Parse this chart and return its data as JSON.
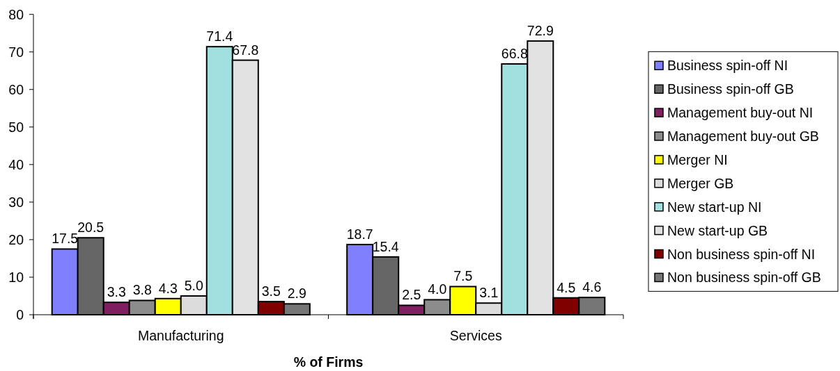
{
  "chart_data": {
    "type": "bar",
    "xlabel": "% of Firms",
    "categories": [
      "Manufacturing",
      "Services"
    ],
    "series": [
      {
        "name": "Business spin-off NI",
        "color": "#8080ff",
        "values": [
          17.5,
          18.7
        ],
        "value_labels": [
          "17.5",
          "18.7"
        ]
      },
      {
        "name": "Business spin-off GB",
        "color": "#666666",
        "values": [
          20.5,
          15.4
        ],
        "value_labels": [
          "20.5",
          "15.4"
        ]
      },
      {
        "name": "Management buy-out NI",
        "color": "#7f1f5f",
        "values": [
          3.3,
          2.5
        ],
        "value_labels": [
          "3.3",
          "2.5"
        ]
      },
      {
        "name": "Management buy-out GB",
        "color": "#8c8c8c",
        "values": [
          3.8,
          4.0
        ],
        "value_labels": [
          "3.8",
          "4.0"
        ]
      },
      {
        "name": "Merger NI",
        "color": "#ffff00",
        "values": [
          4.3,
          7.5
        ],
        "value_labels": [
          "4.3",
          "7.5"
        ]
      },
      {
        "name": "Merger GB",
        "color": "#dcdcdc",
        "values": [
          5.0,
          3.1
        ],
        "value_labels": [
          "5.0",
          "3.1"
        ]
      },
      {
        "name": "New start-up NI",
        "color": "#a2e0e0",
        "values": [
          71.4,
          66.8
        ],
        "value_labels": [
          "71.4",
          "66.8"
        ]
      },
      {
        "name": "New start-up GB",
        "color": "#e2e2e2",
        "values": [
          67.8,
          72.9
        ],
        "value_labels": [
          "67.8",
          "72.9"
        ]
      },
      {
        "name": "Non business spin-off NI",
        "color": "#800000",
        "values": [
          3.5,
          4.5
        ],
        "value_labels": [
          "3.5",
          "4.5"
        ]
      },
      {
        "name": "Non business spin-off GB",
        "color": "#767676",
        "values": [
          2.9,
          4.6
        ],
        "value_labels": [
          "2.9",
          "4.6"
        ]
      }
    ],
    "ylim": [
      0,
      80
    ],
    "yticks": [
      0,
      10,
      20,
      30,
      40,
      50,
      60,
      70,
      80
    ],
    "grid": false,
    "legend": "right"
  }
}
